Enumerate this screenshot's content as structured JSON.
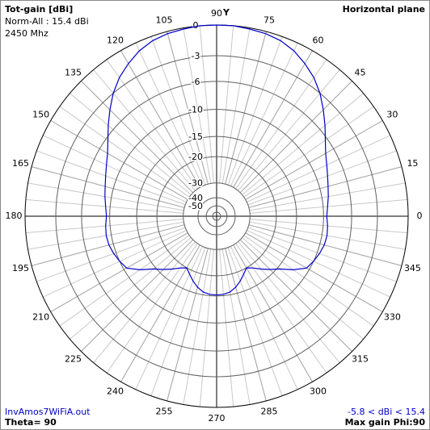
{
  "chart_data": {
    "type": "polar",
    "title": "Tot-gain [dBi]",
    "subtitle": "Norm-All : 15.4 dBi",
    "frequency": "2450 Mhz",
    "plane": "Horizontal plane",
    "axis_label": "Y",
    "file": "InvAmos7WiFiA.out",
    "theta": "Theta= 90",
    "range_note": "-5.8 < dBi < 15.4",
    "max_gain": "Max gain Phi:90",
    "r_scale": "arrl",
    "rlim": [
      -50,
      0
    ],
    "rticks": [
      0,
      -3,
      -6,
      -10,
      -15,
      -20,
      -30,
      -40,
      -50
    ],
    "angle_ticks": [
      0,
      15,
      30,
      45,
      60,
      75,
      90,
      105,
      120,
      135,
      150,
      165,
      180,
      195,
      210,
      225,
      240,
      255,
      270,
      285,
      300,
      315,
      330,
      345
    ],
    "minor_angle_step": 5,
    "color": "#0000c8",
    "x": [
      0,
      5,
      10,
      15,
      20,
      25,
      30,
      35,
      40,
      45,
      50,
      55,
      60,
      65,
      70,
      75,
      80,
      85,
      90,
      95,
      100,
      105,
      110,
      115,
      120,
      125,
      130,
      135,
      140,
      145,
      150,
      155,
      160,
      165,
      170,
      175,
      180,
      185,
      190,
      195,
      200,
      205,
      210,
      215,
      220,
      225,
      230,
      235,
      240,
      245,
      250,
      255,
      260,
      265,
      270,
      275,
      280,
      285,
      290,
      295,
      300,
      305,
      310,
      315,
      320,
      325,
      330,
      335,
      340,
      345,
      350,
      355
    ],
    "values": [
      -9.5,
      -9.3,
      -9.0,
      -8.7,
      -8.3,
      -7.8,
      -7.2,
      -6.3,
      -5.2,
      -4.1,
      -3.0,
      -2.1,
      -1.4,
      -0.8,
      -0.4,
      -0.2,
      -0.1,
      0,
      0,
      0,
      -0.1,
      -0.2,
      -0.4,
      -0.8,
      -1.4,
      -2.1,
      -3.0,
      -4.1,
      -5.2,
      -6.3,
      -7.2,
      -7.8,
      -8.3,
      -8.7,
      -9.0,
      -9.3,
      -9.5,
      -9.3,
      -9.2,
      -9.3,
      -9.6,
      -10.0,
      -10.5,
      -12.3,
      -14.5,
      -16.0,
      -17.5,
      -19.0,
      -20.0,
      -18.8,
      -17.5,
      -16.4,
      -15.6,
      -15.3,
      -15.2,
      -15.3,
      -15.6,
      -16.4,
      -17.5,
      -18.8,
      -20.0,
      -19.0,
      -17.5,
      -16.0,
      -14.5,
      -12.3,
      -10.5,
      -10.0,
      -9.6,
      -9.3,
      -9.2,
      -9.3
    ]
  }
}
